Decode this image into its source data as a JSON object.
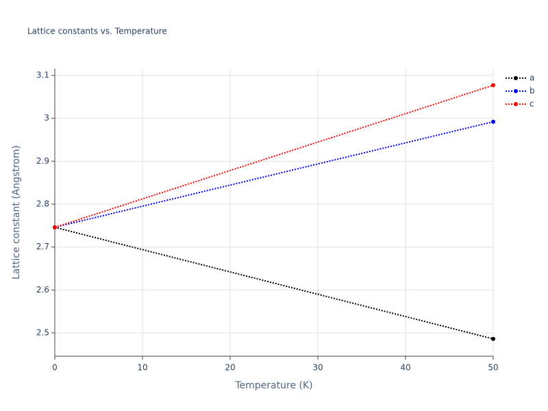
{
  "chart_data": {
    "type": "line",
    "title": "Lattice constants vs. Temperature",
    "x_label": "Temperature (K)",
    "y_label": "Lattice constant (Angstrom)",
    "x": [
      0,
      50
    ],
    "series": [
      {
        "name": "a",
        "color": "#000000",
        "values": [
          2.746,
          2.486
        ]
      },
      {
        "name": "b",
        "color": "#0000ff",
        "values": [
          2.746,
          2.992
        ]
      },
      {
        "name": "c",
        "color": "#ff0000",
        "values": [
          2.746,
          3.077
        ]
      }
    ],
    "xlim": [
      0,
      50
    ],
    "xticks": [
      0,
      10,
      20,
      30,
      40,
      50
    ],
    "ylim": [
      2.4457,
      3.116
    ],
    "yticks": [
      2.5,
      2.6,
      2.7,
      2.8,
      2.9,
      3,
      3.1
    ],
    "grid": true,
    "line_style": "dotted",
    "legend_position": "top-right"
  }
}
